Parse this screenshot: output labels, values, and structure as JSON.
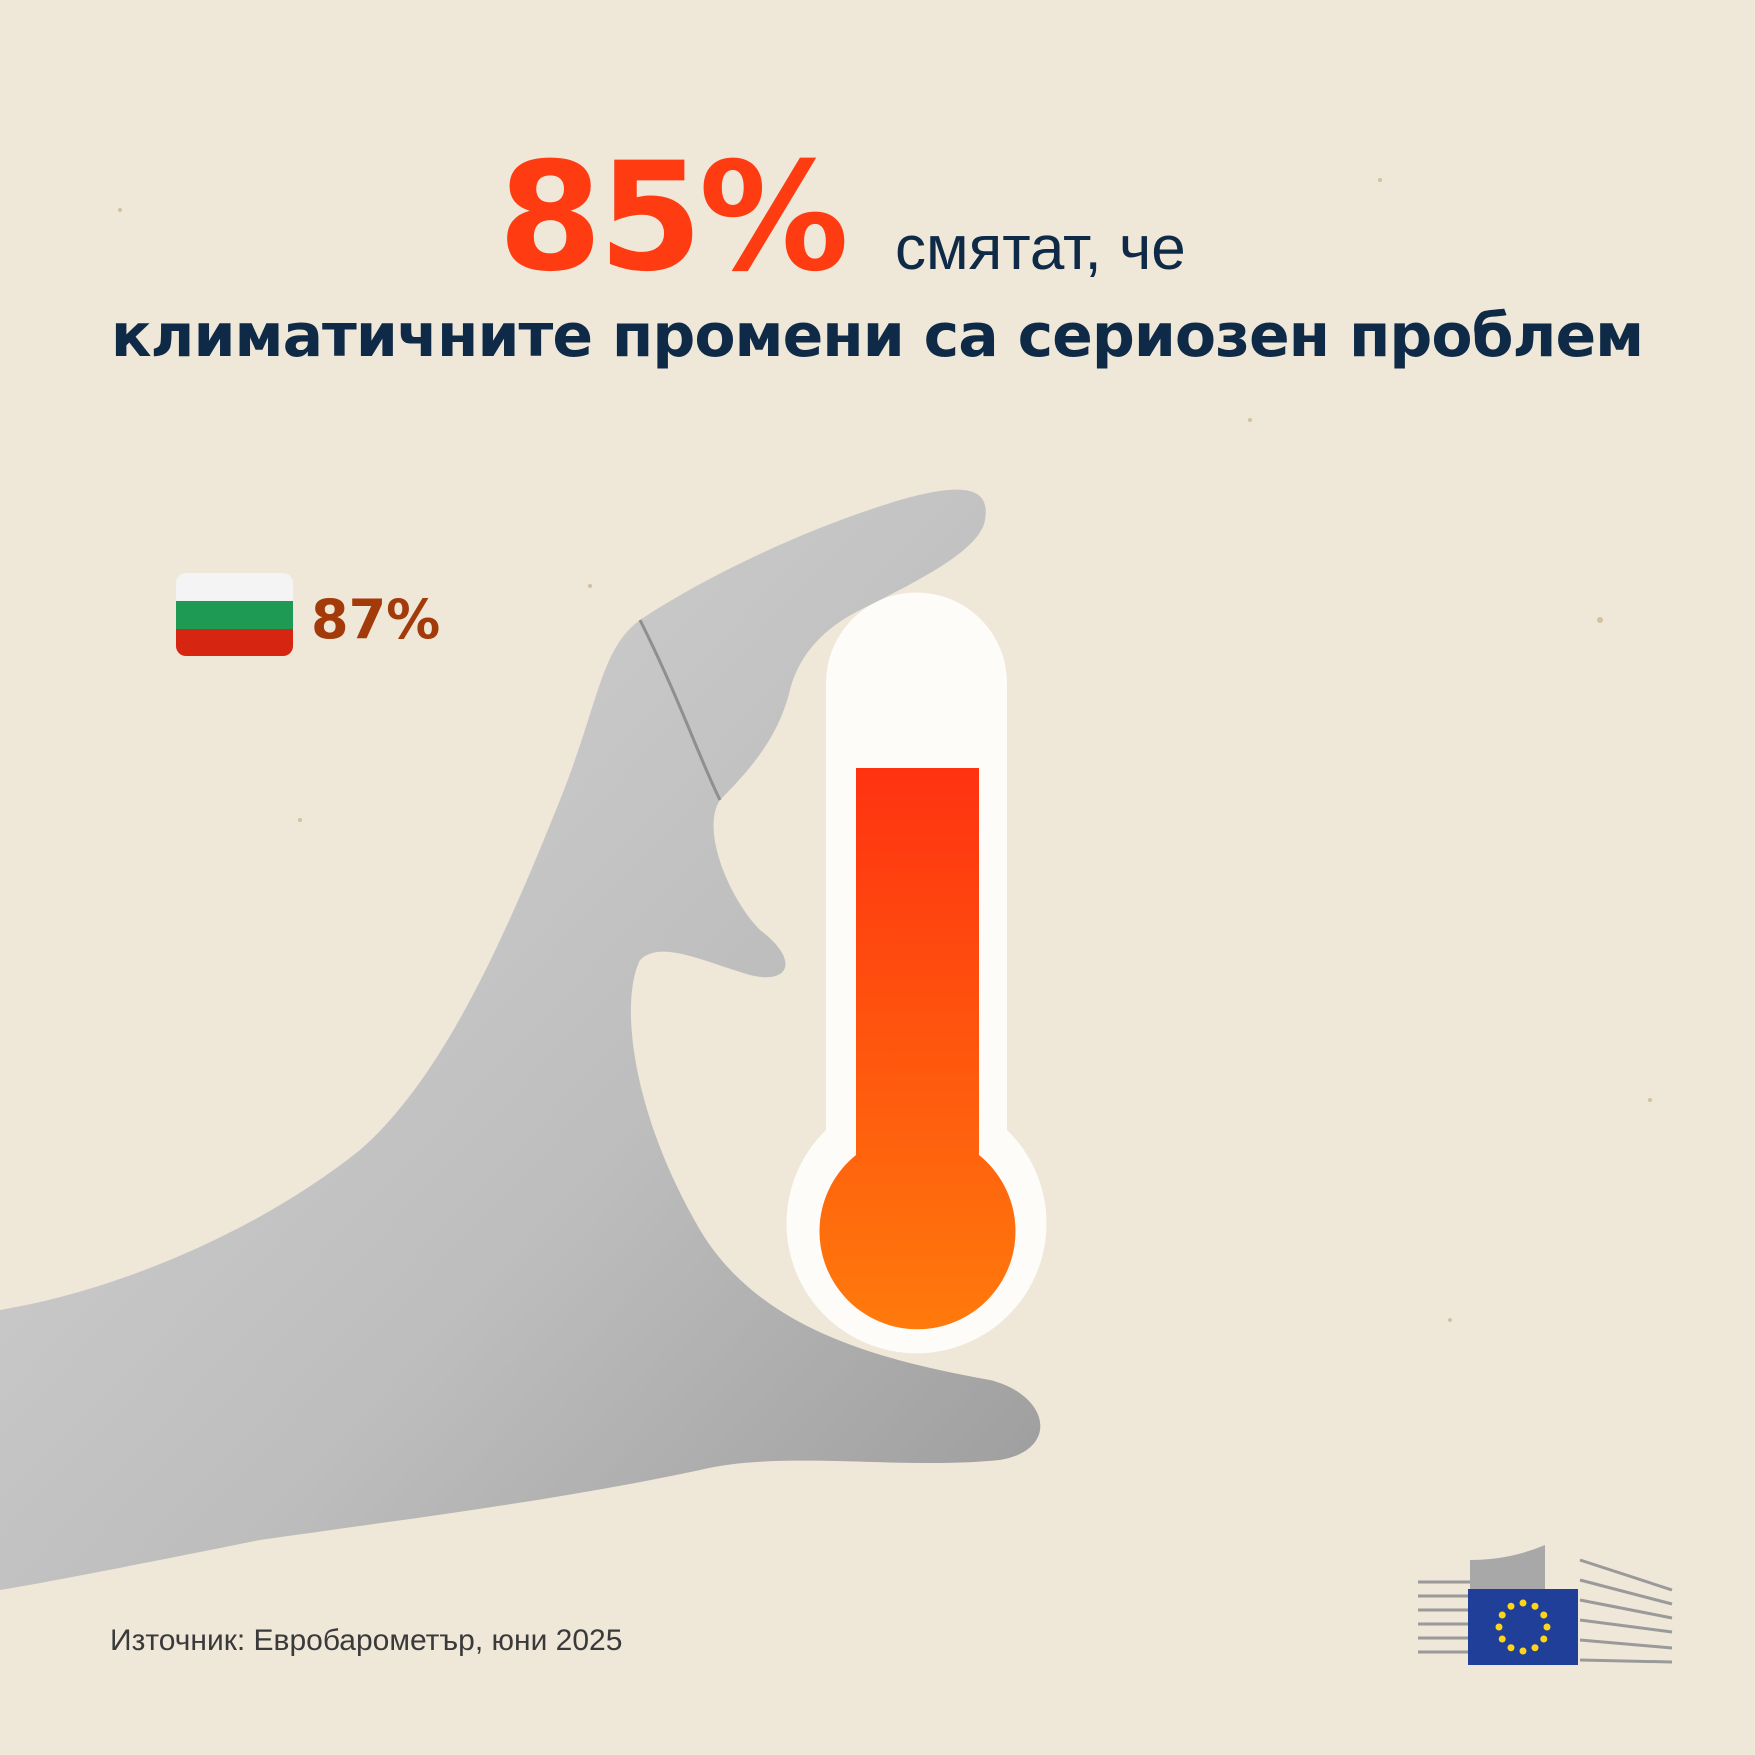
{
  "headline": {
    "value": "85%",
    "text": "смятат, че",
    "statement": "климатичните промени са сериозен проблем"
  },
  "country": {
    "value": "87%"
  },
  "source": "Източник: Евробарометър, юни 2025"
}
